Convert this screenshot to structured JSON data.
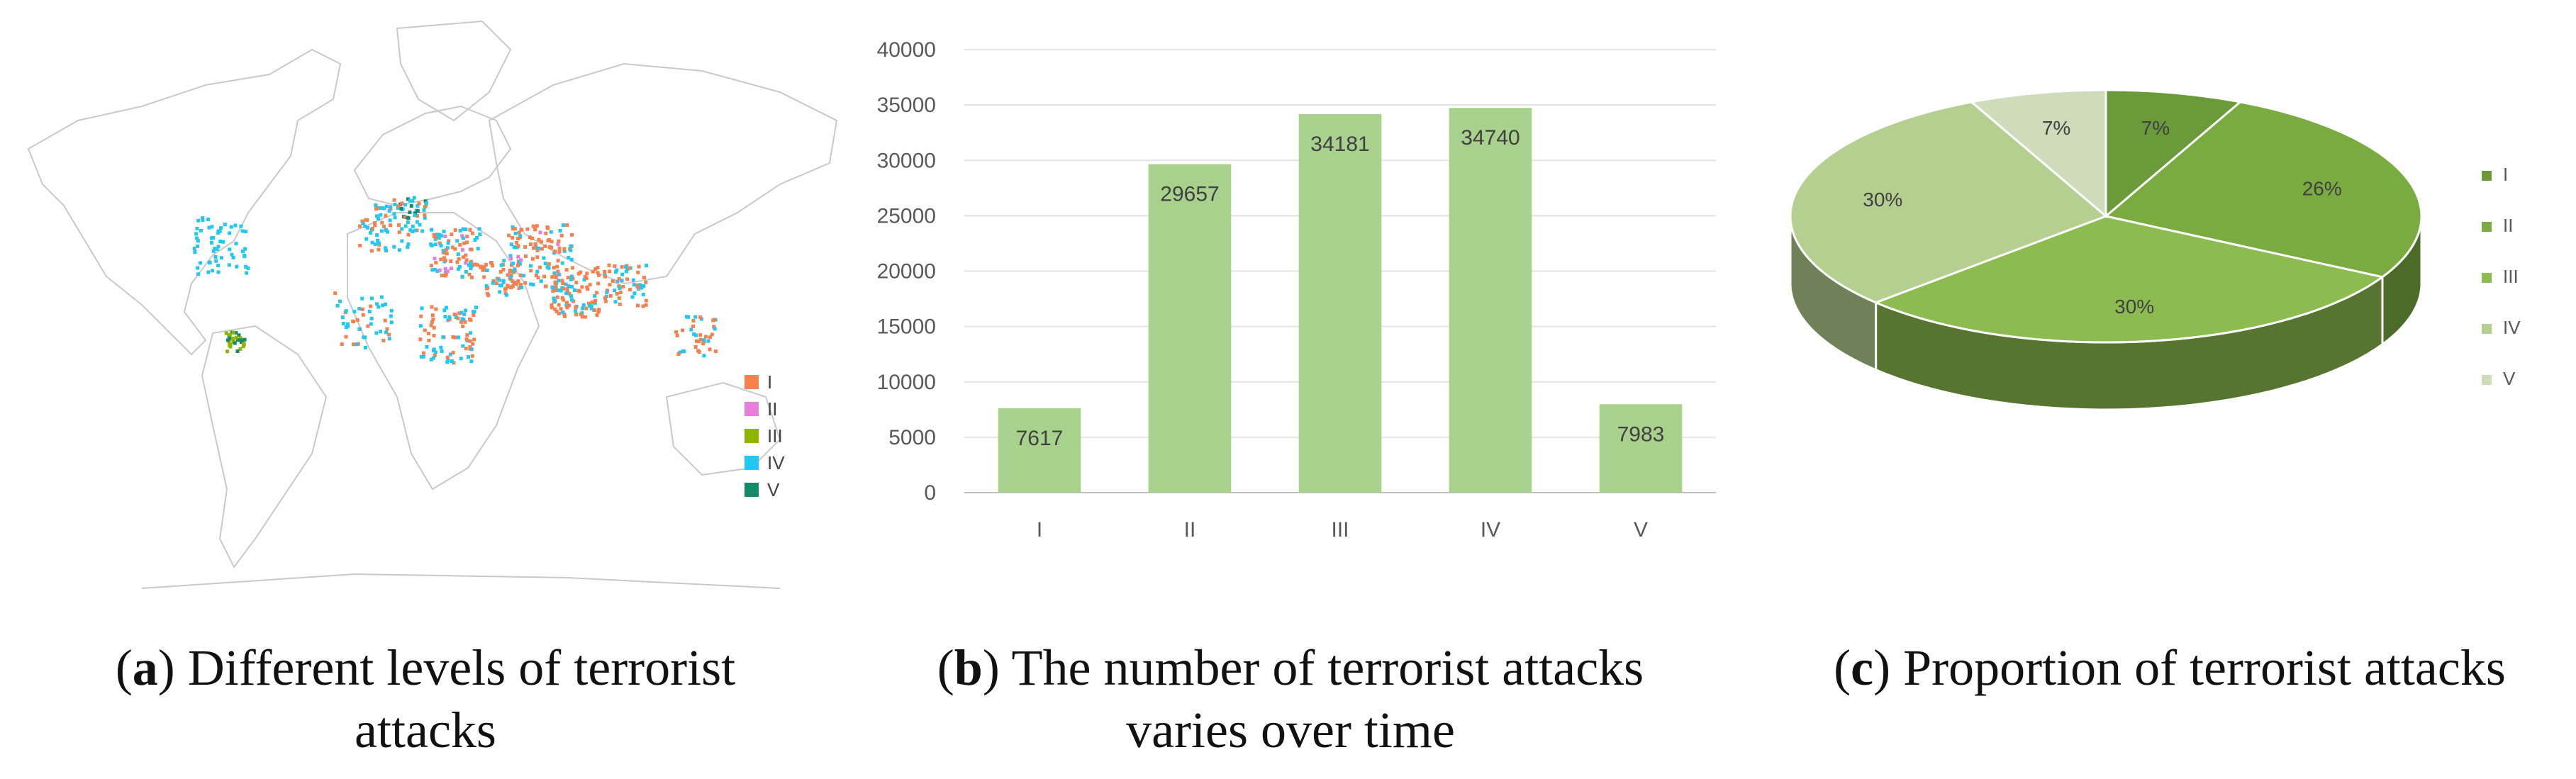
{
  "figure": {
    "panels": [
      {
        "letter": "a",
        "caption_line1": "Different levels of terrorist",
        "caption_line2": "attacks"
      },
      {
        "letter": "b",
        "caption_line1": "The number of terrorist attacks",
        "caption_line2": "varies over time"
      },
      {
        "letter": "c",
        "caption_line1": "Proportion of terrorist attacks",
        "caption_line2": ""
      }
    ]
  },
  "map_legend": {
    "items": [
      {
        "label": "I",
        "color": "#f4814f"
      },
      {
        "label": "II",
        "color": "#e57fd8"
      },
      {
        "label": "III",
        "color": "#8db600"
      },
      {
        "label": "IV",
        "color": "#22c8f0"
      },
      {
        "label": "V",
        "color": "#138a6a"
      }
    ]
  },
  "chart_data": [
    {
      "type": "bar",
      "categories": [
        "I",
        "II",
        "III",
        "IV",
        "V"
      ],
      "values": [
        7617,
        29657,
        34181,
        34740,
        7983
      ],
      "data_labels": [
        "7617",
        "29657",
        "34181",
        "34740",
        "7983"
      ],
      "ylim": [
        0,
        40000
      ],
      "yticks": [
        0,
        5000,
        10000,
        15000,
        20000,
        25000,
        30000,
        35000,
        40000
      ],
      "ytick_labels": [
        "0",
        "5000",
        "10000",
        "15000",
        "20000",
        "25000",
        "30000",
        "35000",
        "40000"
      ],
      "grid": true,
      "bar_color": "#a9d18e"
    },
    {
      "type": "pie",
      "categories": [
        "I",
        "II",
        "III",
        "IV",
        "V"
      ],
      "values": [
        7,
        26,
        30,
        30,
        7
      ],
      "data_labels": [
        "7%",
        "26%",
        "30%",
        "30%",
        "7%"
      ],
      "colors": [
        "#6a9a3a",
        "#7aab41",
        "#8cbc4f",
        "#b5cf90",
        "#cfdcbc"
      ],
      "legend_position": "right"
    }
  ]
}
